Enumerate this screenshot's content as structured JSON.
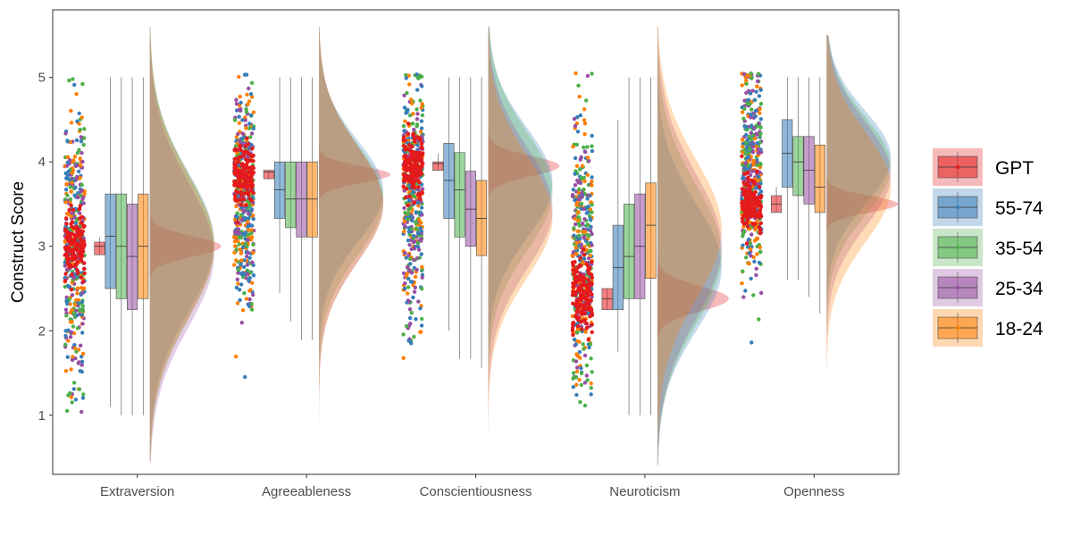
{
  "chart_data": {
    "type": "raincloud",
    "ylabel": "Construct Score",
    "xlabel": "",
    "ylim": [
      0.3,
      5.8
    ],
    "yticks": [
      1,
      2,
      3,
      4,
      5
    ],
    "legend_position": "right",
    "grid": false,
    "categories": [
      "Extraversion",
      "Agreeableness",
      "Conscientiousness",
      "Neuroticism",
      "Openness"
    ],
    "groups": [
      {
        "name": "GPT",
        "color": "#e41a1c"
      },
      {
        "name": "55-74",
        "color": "#377eb8"
      },
      {
        "name": "35-54",
        "color": "#4daf4a"
      },
      {
        "name": "25-34",
        "color": "#984ea3"
      },
      {
        "name": "18-24",
        "color": "#ff7f00"
      }
    ],
    "boxplots": [
      {
        "category": "Extraversion",
        "stats": [
          {
            "group": "GPT",
            "min": 2.9,
            "q1": 2.9,
            "median": 3.0,
            "q3": 3.05,
            "max": 3.1
          },
          {
            "group": "55-74",
            "min": 1.1,
            "q1": 2.5,
            "median": 3.12,
            "q3": 3.62,
            "max": 5.0
          },
          {
            "group": "35-54",
            "min": 1.0,
            "q1": 2.38,
            "median": 3.0,
            "q3": 3.62,
            "max": 5.0
          },
          {
            "group": "25-34",
            "min": 1.0,
            "q1": 2.25,
            "median": 2.88,
            "q3": 3.5,
            "max": 5.0
          },
          {
            "group": "18-24",
            "min": 1.0,
            "q1": 2.38,
            "median": 3.0,
            "q3": 3.62,
            "max": 5.0
          }
        ]
      },
      {
        "category": "Agreeableness",
        "stats": [
          {
            "group": "GPT",
            "min": 3.8,
            "q1": 3.8,
            "median": 3.88,
            "q3": 3.9,
            "max": 3.9
          },
          {
            "group": "55-74",
            "min": 2.44,
            "q1": 3.33,
            "median": 3.67,
            "q3": 4.0,
            "max": 5.0
          },
          {
            "group": "35-54",
            "min": 2.11,
            "q1": 3.22,
            "median": 3.56,
            "q3": 4.0,
            "max": 5.0
          },
          {
            "group": "25-34",
            "min": 1.89,
            "q1": 3.11,
            "median": 3.56,
            "q3": 4.0,
            "max": 5.0
          },
          {
            "group": "18-24",
            "min": 1.89,
            "q1": 3.11,
            "median": 3.56,
            "q3": 4.0,
            "max": 5.0
          }
        ]
      },
      {
        "category": "Conscientiousness",
        "stats": [
          {
            "group": "GPT",
            "min": 3.9,
            "q1": 3.9,
            "median": 3.98,
            "q3": 4.0,
            "max": 4.1
          },
          {
            "group": "55-74",
            "min": 2.0,
            "q1": 3.33,
            "median": 3.78,
            "q3": 4.22,
            "max": 5.0
          },
          {
            "group": "35-54",
            "min": 1.67,
            "q1": 3.11,
            "median": 3.67,
            "q3": 4.11,
            "max": 5.0
          },
          {
            "group": "25-34",
            "min": 1.67,
            "q1": 3.0,
            "median": 3.44,
            "q3": 3.89,
            "max": 5.0
          },
          {
            "group": "18-24",
            "min": 1.56,
            "q1": 2.89,
            "median": 3.33,
            "q3": 3.78,
            "max": 5.0
          }
        ]
      },
      {
        "category": "Neuroticism",
        "stats": [
          {
            "group": "GPT",
            "min": 2.25,
            "q1": 2.25,
            "median": 2.38,
            "q3": 2.5,
            "max": 2.5
          },
          {
            "group": "55-74",
            "min": 1.75,
            "q1": 2.25,
            "median": 2.75,
            "q3": 3.25,
            "max": 4.5
          },
          {
            "group": "35-54",
            "min": 1.0,
            "q1": 2.38,
            "median": 2.88,
            "q3": 3.5,
            "max": 5.0
          },
          {
            "group": "25-34",
            "min": 1.0,
            "q1": 2.38,
            "median": 3.0,
            "q3": 3.62,
            "max": 5.0
          },
          {
            "group": "18-24",
            "min": 1.0,
            "q1": 2.62,
            "median": 3.25,
            "q3": 3.75,
            "max": 5.0
          }
        ]
      },
      {
        "category": "Openness",
        "stats": [
          {
            "group": "GPT",
            "min": 3.4,
            "q1": 3.4,
            "median": 3.5,
            "q3": 3.6,
            "max": 3.7
          },
          {
            "group": "55-74",
            "min": 2.6,
            "q1": 3.7,
            "median": 4.1,
            "q3": 4.5,
            "max": 5.0
          },
          {
            "group": "35-54",
            "min": 2.6,
            "q1": 3.6,
            "median": 4.0,
            "q3": 4.3,
            "max": 5.0
          },
          {
            "group": "25-34",
            "min": 2.4,
            "q1": 3.5,
            "median": 3.9,
            "q3": 4.3,
            "max": 5.0
          },
          {
            "group": "18-24",
            "min": 2.2,
            "q1": 3.4,
            "median": 3.7,
            "q3": 4.2,
            "max": 5.0
          }
        ]
      }
    ],
    "densities": [
      {
        "category": "Extraversion",
        "curves": [
          {
            "group": "GPT",
            "mean": 3.0,
            "sd": 0.12,
            "low": 2.3,
            "high": 3.7
          },
          {
            "group": "55-74",
            "mean": 3.05,
            "sd": 0.82,
            "low": 0.5,
            "high": 5.6
          },
          {
            "group": "35-54",
            "mean": 3.0,
            "sd": 0.85,
            "low": 0.45,
            "high": 5.6
          },
          {
            "group": "25-34",
            "mean": 2.9,
            "sd": 0.85,
            "low": 0.45,
            "high": 5.6
          },
          {
            "group": "18-24",
            "mean": 3.0,
            "sd": 0.84,
            "low": 0.45,
            "high": 5.6
          }
        ]
      },
      {
        "category": "Agreeableness",
        "curves": [
          {
            "group": "GPT",
            "mean": 3.85,
            "sd": 0.1,
            "low": 3.3,
            "high": 4.4
          },
          {
            "group": "55-74",
            "mean": 3.65,
            "sd": 0.6,
            "low": 1.3,
            "high": 5.6
          },
          {
            "group": "35-54",
            "mean": 3.55,
            "sd": 0.65,
            "low": 0.9,
            "high": 5.6
          },
          {
            "group": "25-34",
            "mean": 3.5,
            "sd": 0.68,
            "low": 0.8,
            "high": 5.6
          },
          {
            "group": "18-24",
            "mean": 3.5,
            "sd": 0.68,
            "low": 0.8,
            "high": 5.6
          }
        ]
      },
      {
        "category": "Conscientiousness",
        "curves": [
          {
            "group": "GPT",
            "mean": 3.95,
            "sd": 0.12,
            "low": 3.3,
            "high": 4.6
          },
          {
            "group": "55-74",
            "mean": 3.75,
            "sd": 0.65,
            "low": 0.9,
            "high": 5.6
          },
          {
            "group": "35-54",
            "mean": 3.65,
            "sd": 0.7,
            "low": 0.8,
            "high": 5.6
          },
          {
            "group": "25-34",
            "mean": 3.45,
            "sd": 0.72,
            "low": 0.7,
            "high": 5.6
          },
          {
            "group": "18-24",
            "mean": 3.35,
            "sd": 0.72,
            "low": 0.7,
            "high": 5.6
          }
        ]
      },
      {
        "category": "Neuroticism",
        "curves": [
          {
            "group": "GPT",
            "mean": 2.38,
            "sd": 0.15,
            "low": 1.7,
            "high": 3.1
          },
          {
            "group": "55-74",
            "mean": 2.75,
            "sd": 0.75,
            "low": 0.4,
            "high": 5.4
          },
          {
            "group": "35-54",
            "mean": 2.9,
            "sd": 0.82,
            "low": 0.4,
            "high": 5.6
          },
          {
            "group": "25-34",
            "mean": 3.0,
            "sd": 0.85,
            "low": 0.4,
            "high": 5.6
          },
          {
            "group": "18-24",
            "mean": 3.2,
            "sd": 0.82,
            "low": 0.4,
            "high": 5.6
          }
        ]
      },
      {
        "category": "Openness",
        "curves": [
          {
            "group": "GPT",
            "mean": 3.5,
            "sd": 0.1,
            "low": 3.0,
            "high": 4.0
          },
          {
            "group": "55-74",
            "mean": 4.05,
            "sd": 0.55,
            "low": 1.8,
            "high": 5.5
          },
          {
            "group": "35-54",
            "mean": 3.95,
            "sd": 0.58,
            "low": 1.7,
            "high": 5.5
          },
          {
            "group": "25-34",
            "mean": 3.85,
            "sd": 0.62,
            "low": 1.6,
            "high": 5.5
          },
          {
            "group": "18-24",
            "mean": 3.7,
            "sd": 0.65,
            "low": 1.5,
            "high": 5.5
          }
        ]
      }
    ],
    "jitter_points": [
      {
        "category": "Extraversion",
        "gpt_center": 3.0,
        "gpt_spread": 0.18,
        "human_mean": 3.0,
        "human_sd": 0.85
      },
      {
        "category": "Agreeableness",
        "gpt_center": 3.85,
        "gpt_spread": 0.18,
        "human_mean": 3.55,
        "human_sd": 0.65
      },
      {
        "category": "Conscientiousness",
        "gpt_center": 3.95,
        "gpt_spread": 0.18,
        "human_mean": 3.55,
        "human_sd": 0.7
      },
      {
        "category": "Neuroticism",
        "gpt_center": 2.4,
        "gpt_spread": 0.2,
        "human_mean": 2.95,
        "human_sd": 0.85
      },
      {
        "category": "Openness",
        "gpt_center": 3.5,
        "gpt_spread": 0.15,
        "human_mean": 3.9,
        "human_sd": 0.6
      }
    ]
  }
}
